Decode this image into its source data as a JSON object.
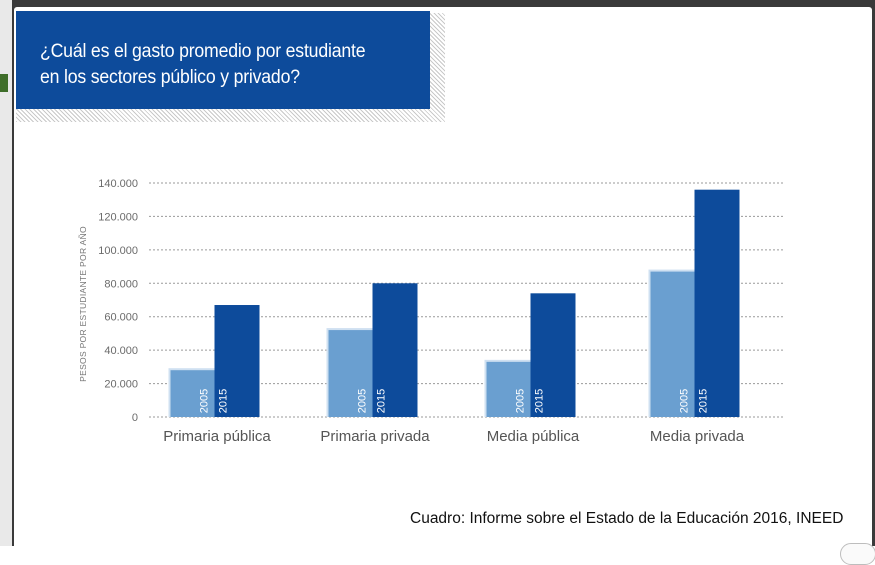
{
  "page": {
    "credit": "Cuadro: Informe sobre el Estado de la Educación 2016, INEED"
  },
  "banner": {
    "title_line1": "¿Cuál es el gasto promedio por estudiante",
    "title_line2": "en los sectores público y privado?",
    "color": "#0d4b9b"
  },
  "chart_data": {
    "type": "bar",
    "title": "¿Cuál es el gasto promedio por estudiante en los sectores público y privado?",
    "ylabel": "PESOS POR ESTUDIANTE POR AÑO",
    "xlabel": "",
    "categories": [
      "Primaria pública",
      "Primaria privada",
      "Media pública",
      "Media privada"
    ],
    "series": [
      {
        "name": "2005",
        "values": [
          28000,
          52000,
          33000,
          87000
        ],
        "color": "#6a9fd0"
      },
      {
        "name": "2015",
        "values": [
          67000,
          80000,
          74000,
          136000
        ],
        "color": "#0d4b9b"
      }
    ],
    "ylim": [
      0,
      140000
    ],
    "yticks": [
      0,
      20000,
      40000,
      60000,
      80000,
      100000,
      120000,
      140000
    ],
    "ytick_labels": [
      "0",
      "20.000",
      "40.000",
      "60.000",
      "80.000",
      "100.000",
      "120.000",
      "140.000"
    ],
    "grid": true,
    "legend": "none (series labels printed inside bars)"
  }
}
